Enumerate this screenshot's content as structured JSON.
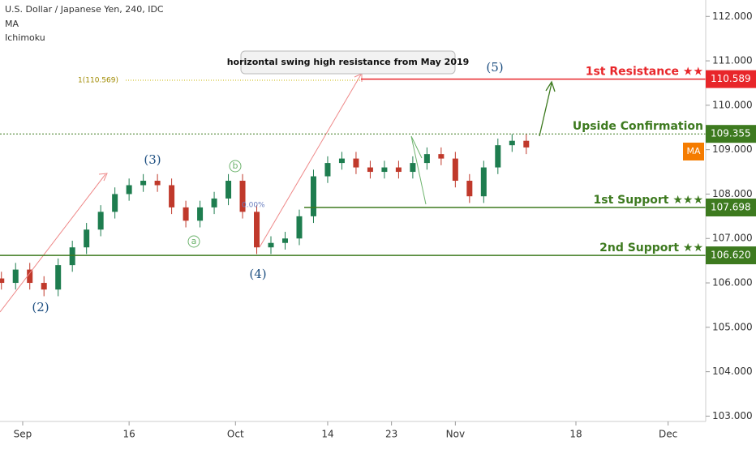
{
  "chart_data": {
    "type": "candlestick",
    "title": "U.S. Dollar / Japanese Yen, 240, IDC",
    "indicators": [
      "MA",
      "Ichimoku"
    ],
    "x": [
      -3,
      -1,
      1,
      3,
      5,
      7,
      9,
      11,
      13,
      15,
      17,
      19,
      21,
      23,
      25,
      27,
      29,
      31,
      33,
      35,
      37,
      39,
      41,
      43,
      45,
      47,
      49,
      51,
      53,
      55,
      57,
      59,
      61,
      63,
      65,
      67,
      69,
      71
    ],
    "open": [
      106.1,
      106.0,
      106.3,
      106.0,
      105.85,
      106.4,
      106.8,
      107.2,
      107.6,
      108.0,
      108.2,
      108.3,
      108.2,
      107.7,
      107.4,
      107.7,
      107.9,
      108.3,
      107.6,
      106.8,
      106.9,
      107.0,
      107.5,
      108.4,
      108.7,
      108.8,
      108.6,
      108.5,
      108.6,
      108.5,
      108.7,
      108.9,
      108.8,
      108.3,
      107.95,
      108.6,
      109.1,
      109.2
    ],
    "high": [
      106.25,
      106.45,
      106.45,
      106.15,
      106.55,
      106.95,
      107.35,
      107.75,
      108.15,
      108.35,
      108.45,
      108.45,
      108.35,
      107.85,
      107.85,
      108.05,
      108.45,
      108.45,
      107.75,
      107.05,
      107.15,
      107.65,
      108.55,
      108.85,
      108.95,
      108.95,
      108.75,
      108.75,
      108.75,
      108.85,
      109.05,
      109.05,
      108.95,
      108.45,
      108.75,
      109.25,
      109.35,
      109.35
    ],
    "low": [
      105.85,
      105.85,
      105.85,
      105.7,
      105.7,
      106.25,
      106.65,
      107.05,
      107.45,
      107.85,
      108.05,
      108.05,
      107.55,
      107.25,
      107.25,
      107.55,
      107.75,
      107.45,
      106.65,
      106.65,
      106.75,
      106.85,
      107.35,
      108.25,
      108.55,
      108.45,
      108.35,
      108.35,
      108.35,
      108.35,
      108.55,
      108.65,
      108.15,
      107.8,
      107.8,
      108.45,
      108.95,
      108.9
    ],
    "close": [
      106.0,
      106.3,
      106.0,
      105.85,
      106.4,
      106.8,
      107.2,
      107.6,
      108.0,
      108.2,
      108.3,
      108.2,
      107.7,
      107.4,
      107.7,
      107.9,
      108.3,
      107.6,
      106.8,
      106.9,
      107.0,
      107.5,
      108.4,
      108.7,
      108.8,
      108.6,
      108.5,
      108.6,
      108.5,
      108.7,
      108.9,
      108.8,
      108.3,
      107.95,
      108.6,
      109.1,
      109.2,
      109.05
    ],
    "up_color": "#1e7d4f",
    "down_color": "#c0392b",
    "xlim": [
      -3.2,
      96.3
    ],
    "xticks": [
      {
        "value": 0,
        "label": "Sep"
      },
      {
        "value": 15,
        "label": "16"
      },
      {
        "value": 30,
        "label": "Oct"
      },
      {
        "value": 43,
        "label": "14"
      },
      {
        "value": 52,
        "label": "23"
      },
      {
        "value": 61,
        "label": "Nov"
      },
      {
        "value": 78,
        "label": "18"
      },
      {
        "value": 91,
        "label": "Dec"
      }
    ],
    "ylim": [
      102.88,
      112.37
    ],
    "yticks": [
      {
        "value": 103,
        "label": "103.000"
      },
      {
        "value": 104,
        "label": "104.000"
      },
      {
        "value": 105,
        "label": "105.000"
      },
      {
        "value": 106,
        "label": "106.000"
      },
      {
        "value": 107,
        "label": "107.000"
      },
      {
        "value": 108,
        "label": "108.000"
      },
      {
        "value": 109,
        "label": "109.000"
      },
      {
        "value": 110,
        "label": "110.000"
      },
      {
        "value": 111,
        "label": "111.000"
      },
      {
        "value": 112,
        "label": "112.000"
      }
    ],
    "levels": [
      {
        "name": "1st Resistance ★★",
        "value": 110.589,
        "label": "110.589",
        "color": "#e8262a"
      },
      {
        "name": "Upside Confirmation",
        "value": 109.355,
        "label": "109.355",
        "color": "#3d7a1f"
      },
      {
        "name": "1st Support ★★★",
        "value": 107.698,
        "label": "107.698",
        "color": "#3d7a1f"
      },
      {
        "name": "2nd Support ★★",
        "value": 106.62,
        "label": "106.620",
        "color": "#3d7a1f"
      }
    ],
    "ma_tag": "MA",
    "annotations": {
      "note": "horizontal swing high resistance from May 2019",
      "fib": "1(110.569)",
      "fib0": "0.00%",
      "w2": "(2)",
      "w3": "(3)",
      "w4": "(4)",
      "w5": "(5)",
      "wa": "a",
      "wb": "b"
    }
  }
}
